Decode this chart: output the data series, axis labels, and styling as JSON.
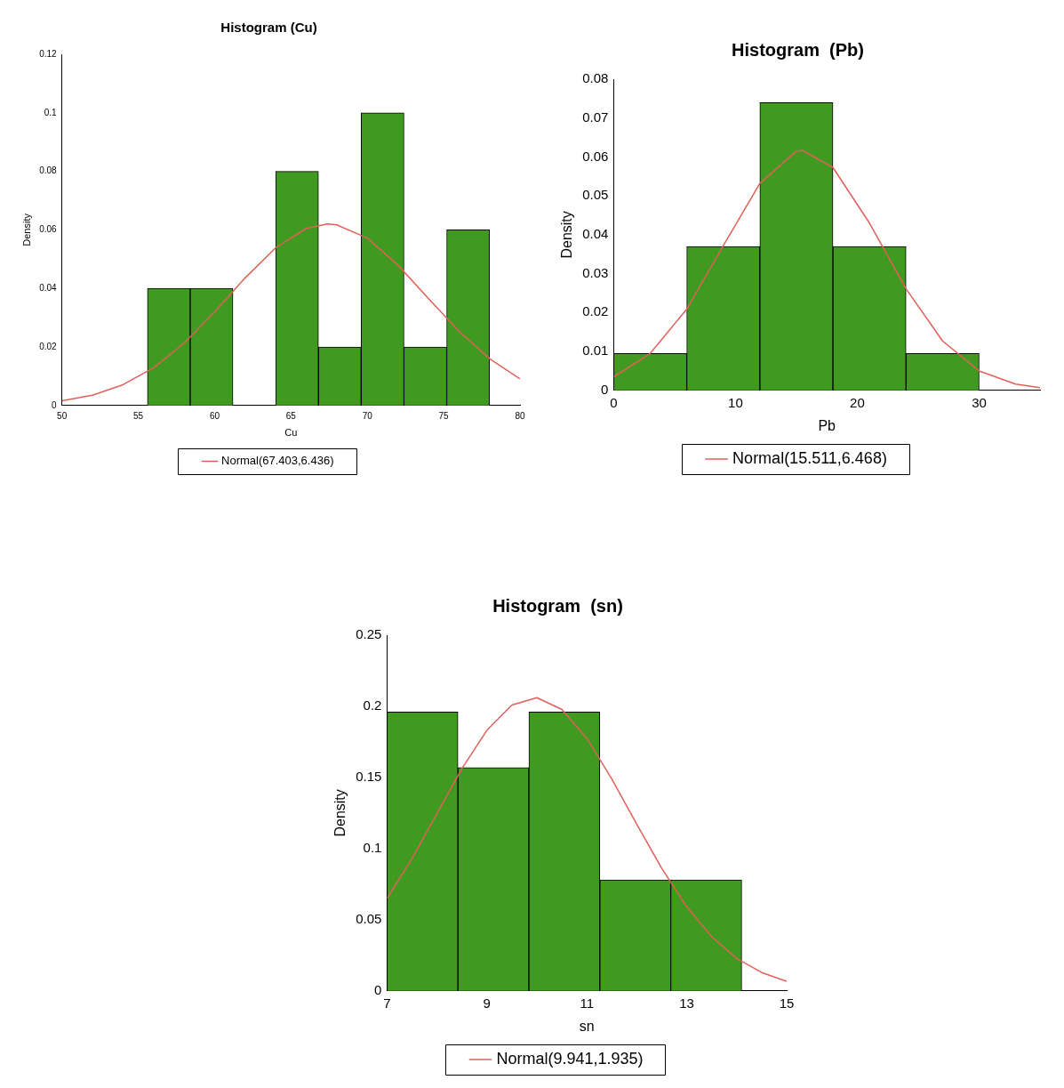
{
  "chart_data": [
    {
      "type": "histogram",
      "title": "Histogram (Cu)",
      "xlabel": "Cu",
      "ylabel": "Density",
      "bins": [
        55.6,
        58.4,
        61.2,
        64.0,
        66.8,
        69.6,
        72.4,
        75.2,
        78.0
      ],
      "values": [
        0.04,
        0.04,
        0,
        0.08,
        0.02,
        0.1,
        0.02,
        0.06
      ],
      "color": "#3f9a1f",
      "xlim": [
        50,
        80
      ],
      "xticks": [
        50,
        55,
        60,
        65,
        70,
        75,
        80
      ],
      "ylim": [
        0,
        0.12
      ],
      "yticks": [
        0,
        0.02,
        0.04,
        0.06,
        0.08,
        0.1,
        0.12
      ],
      "legend": "bottom",
      "marker": "none",
      "series": [
        {
          "type": "line",
          "name": "Normal(67.403,6.436)",
          "color": "#e0605a",
          "x": [
            50,
            52,
            54,
            56,
            58,
            60,
            62,
            64,
            66,
            67.4,
            68,
            70,
            72,
            74,
            76,
            78,
            80
          ],
          "values": [
            0.0016,
            0.0035,
            0.0071,
            0.0129,
            0.0213,
            0.032,
            0.0436,
            0.0539,
            0.0605,
            0.062,
            0.0617,
            0.0572,
            0.048,
            0.0366,
            0.0254,
            0.016,
            0.0091
          ]
        }
      ]
    },
    {
      "type": "histogram",
      "title": "Histogram  (Pb)",
      "xlabel": "Pb",
      "ylabel": "Density",
      "bins": [
        0,
        6,
        12,
        18,
        24,
        30
      ],
      "values": [
        0.0095,
        0.037,
        0.074,
        0.037,
        0.0095
      ],
      "color": "#3f9a1f",
      "xlim": [
        0,
        35
      ],
      "xticks": [
        0,
        10,
        20,
        30
      ],
      "ylim": [
        0,
        0.08
      ],
      "yticks": [
        0,
        0.01,
        0.02,
        0.03,
        0.04,
        0.05,
        0.06,
        0.07,
        0.08
      ],
      "legend": "bottom",
      "marker": "none",
      "series": [
        {
          "type": "line",
          "name": "Normal(15.511,6.468)",
          "color": "#e0605a",
          "x": [
            0,
            3,
            6,
            9,
            12,
            15,
            15.5,
            18,
            21,
            24,
            27,
            30,
            33,
            35
          ],
          "values": [
            0.0035,
            0.0095,
            0.0209,
            0.0372,
            0.0532,
            0.0615,
            0.0617,
            0.0573,
            0.043,
            0.0261,
            0.0127,
            0.005,
            0.0016,
            0.0007
          ]
        }
      ]
    },
    {
      "type": "histogram",
      "title": "Histogram  (sn)",
      "xlabel": "sn",
      "ylabel": "Density",
      "bins": [
        7,
        8.42,
        9.84,
        11.26,
        12.68,
        14.1
      ],
      "values": [
        0.196,
        0.157,
        0.196,
        0.078,
        0.078
      ],
      "color": "#3f9a1f",
      "xlim": [
        7,
        15
      ],
      "xticks": [
        7,
        9,
        11,
        13,
        15
      ],
      "ylim": [
        0,
        0.25
      ],
      "yticks": [
        0,
        0.05,
        0.1,
        0.15,
        0.2,
        0.25
      ],
      "legend": "bottom",
      "marker": "none",
      "series": [
        {
          "type": "line",
          "name": "Normal(9.941,1.935)",
          "color": "#e0605a",
          "x": [
            7,
            7.5,
            8,
            8.5,
            9,
            9.5,
            10,
            10.5,
            11,
            11.5,
            12,
            12.5,
            13,
            13.5,
            14,
            14.5,
            15
          ],
          "values": [
            0.065,
            0.093,
            0.1247,
            0.1563,
            0.1832,
            0.2009,
            0.2061,
            0.1978,
            0.1775,
            0.149,
            0.1171,
            0.0861,
            0.0591,
            0.038,
            0.0228,
            0.0129,
            0.0068
          ]
        }
      ]
    }
  ]
}
